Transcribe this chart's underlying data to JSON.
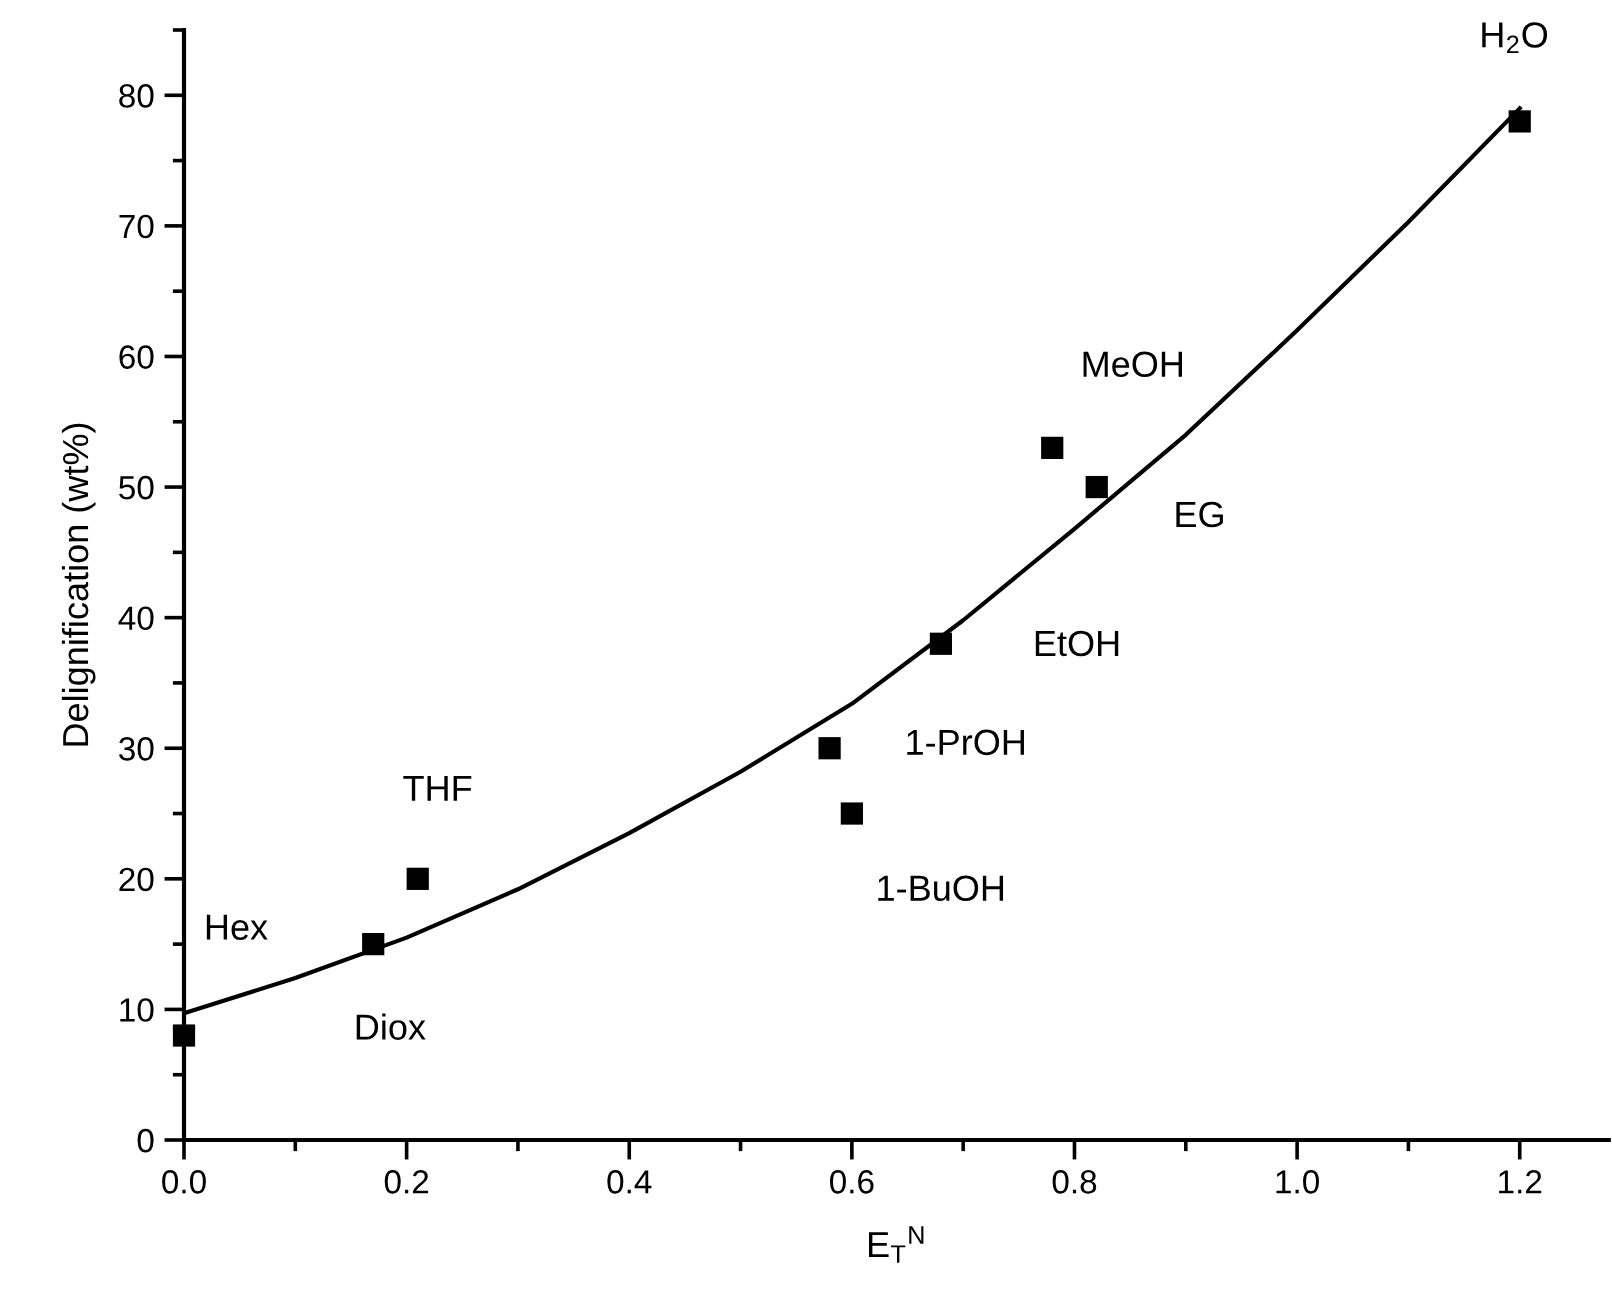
{
  "chart_data": {
    "type": "scatter",
    "xlabel": "E$_{T}$$^{N}$",
    "ylabel": "Delignification (wt%)",
    "xlim": [
      0,
      1.28
    ],
    "ylim": [
      0,
      85
    ],
    "xticks": [
      {
        "value": 0,
        "label": "0.0"
      },
      0.2,
      0.4,
      0.6,
      0.8,
      {
        "value": 1,
        "label": "1.0"
      },
      1.2
    ],
    "yticks": [
      0,
      10,
      20,
      30,
      40,
      50,
      60,
      70,
      80
    ],
    "grid": false,
    "legend": false,
    "series": [
      {
        "marker": "square",
        "color": "#000000",
        "x": [
          0,
          0.17,
          0.21,
          0.58,
          0.6,
          0.68,
          0.78,
          0.82,
          1.2
        ],
        "values": [
          8,
          15,
          20,
          30,
          25,
          38,
          53,
          50,
          78
        ]
      },
      {
        "type": "line",
        "marker": "none",
        "color": "#000000",
        "line_style": "solid",
        "x": [
          0,
          0.1,
          0.2,
          0.3,
          0.4,
          0.5,
          0.6,
          0.7,
          0.8,
          0.9,
          1.0,
          1.1,
          1.2
        ],
        "values": [
          9.7,
          12.4,
          15.5,
          19.2,
          23.5,
          28.2,
          33.4,
          39.8,
          46.8,
          54,
          62,
          70.3,
          79
        ]
      }
    ],
    "annotations": [
      "Hex",
      {
        "text": "Diox",
        "x": 0.17,
        "y": 15
      },
      "THF",
      {
        "text": "1-PrOH",
        "x": 0.58,
        "y": 30
      },
      {
        "text": "1-BuOH",
        "x": 0.6,
        "y": 25
      },
      {
        "text": "EtOH",
        "x": 0.68,
        "y": 38
      },
      {
        "text": "MeOH",
        "x": 0.78,
        "y": 53
      },
      {
        "text": "EG",
        "x": 0.82,
        "y": 50
      },
      {
        "text": "H$_{2}$O",
        "x": 1.2,
        "y": 78
      }
    ]
  }
}
